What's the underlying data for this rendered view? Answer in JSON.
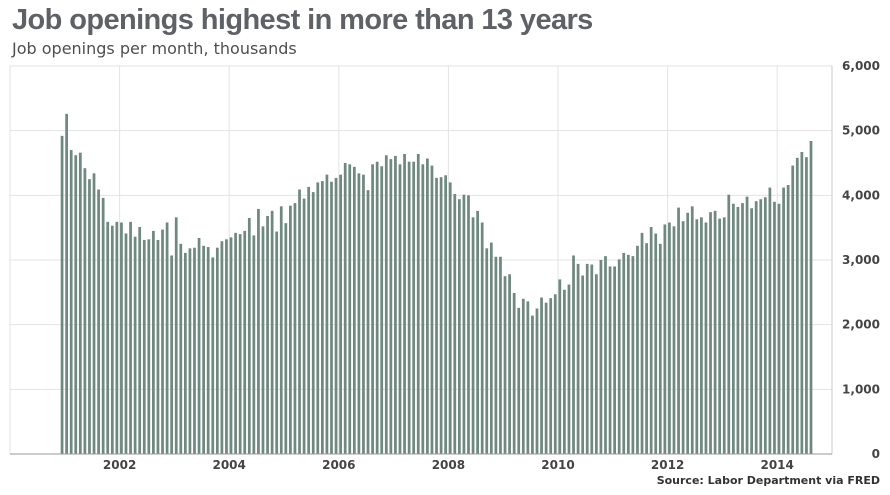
{
  "chart_data": {
    "type": "bar",
    "title": "Job openings highest in more than 13 years",
    "subtitle": "Job openings per month, thousands",
    "source": "Source: Labor Department via FRED",
    "xlabel": "",
    "ylabel": "",
    "ylim": [
      0,
      6000
    ],
    "y_ticks": [
      0,
      1000,
      2000,
      3000,
      4000,
      5000,
      6000
    ],
    "y_tick_labels": [
      "0",
      "1,000",
      "2,000",
      "3,000",
      "4,000",
      "5,000",
      "6,000"
    ],
    "x_ticks": [
      2002,
      2004,
      2006,
      2008,
      2010,
      2012,
      2014
    ],
    "x_tick_labels": [
      "2002",
      "2004",
      "2006",
      "2008",
      "2010",
      "2012",
      "2014"
    ],
    "x_range": [
      2000,
      2015
    ],
    "bar_color": "#6f8880",
    "grid_color": "#e3e3e3",
    "start_year": 2000.95,
    "months_per_bar": 1,
    "values": [
      4920,
      5260,
      4700,
      4620,
      4660,
      4420,
      4250,
      4340,
      4090,
      3960,
      3590,
      3530,
      3590,
      3580,
      3410,
      3590,
      3360,
      3510,
      3310,
      3320,
      3450,
      3310,
      3470,
      3580,
      3070,
      3660,
      3250,
      3110,
      3180,
      3190,
      3340,
      3220,
      3200,
      3040,
      3190,
      3290,
      3320,
      3350,
      3420,
      3400,
      3450,
      3650,
      3380,
      3790,
      3520,
      3680,
      3760,
      3440,
      3830,
      3570,
      3840,
      3880,
      4090,
      3950,
      4130,
      4050,
      4200,
      4220,
      4320,
      4210,
      4270,
      4320,
      4500,
      4480,
      4440,
      4340,
      4320,
      4080,
      4480,
      4520,
      4450,
      4620,
      4560,
      4610,
      4480,
      4640,
      4520,
      4520,
      4640,
      4480,
      4570,
      4460,
      4270,
      4280,
      4310,
      4200,
      4020,
      3940,
      4010,
      4000,
      3660,
      3760,
      3580,
      3180,
      3270,
      3050,
      3050,
      2750,
      2780,
      2490,
      2260,
      2400,
      2360,
      2140,
      2250,
      2420,
      2340,
      2410,
      2470,
      2700,
      2540,
      2620,
      3070,
      2940,
      2760,
      2940,
      2930,
      2780,
      3000,
      3060,
      2900,
      2900,
      3010,
      3110,
      3080,
      3060,
      3220,
      3420,
      3260,
      3510,
      3410,
      3250,
      3550,
      3580,
      3520,
      3810,
      3600,
      3730,
      3830,
      3630,
      3660,
      3580,
      3740,
      3760,
      3640,
      3660,
      4010,
      3870,
      3820,
      3880,
      3980,
      3800,
      3910,
      3940,
      3970,
      4120,
      3900,
      3870,
      4120,
      4160,
      4460,
      4580,
      4670,
      4590,
      4840
    ]
  }
}
